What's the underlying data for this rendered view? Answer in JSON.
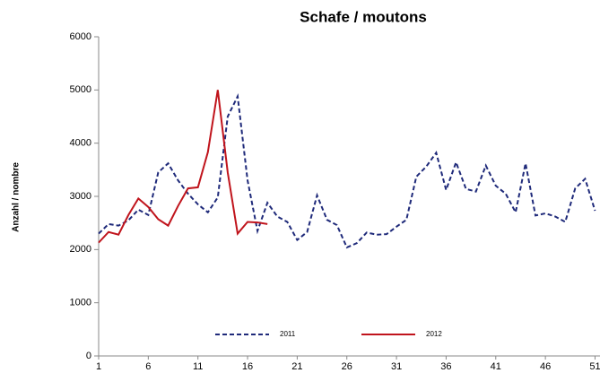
{
  "chart_data": {
    "type": "line",
    "title": "Schafe / moutons",
    "ylabel": "Anzahl / nombre",
    "xlim": [
      1,
      51.5
    ],
    "xticks": [
      1,
      6,
      11,
      16,
      21,
      26,
      31,
      36,
      41,
      46,
      51
    ],
    "ylim": [
      0,
      6000
    ],
    "yticks": [
      0,
      1000,
      2000,
      3000,
      4000,
      5000,
      6000
    ],
    "legend": "lower center",
    "series": [
      {
        "name": "2011",
        "color": "#1f2a7a",
        "dashed": true,
        "x": [
          1,
          2,
          3,
          4,
          5,
          6,
          7,
          8,
          9,
          10,
          11,
          12,
          13,
          14,
          15,
          16,
          17,
          18,
          19,
          20,
          21,
          22,
          23,
          24,
          25,
          26,
          27,
          28,
          29,
          30,
          31,
          32,
          33,
          34,
          35,
          36,
          37,
          38,
          39,
          40,
          41,
          42,
          43,
          44,
          45,
          46,
          47,
          48,
          49,
          50,
          51
        ],
        "values": [
          2300,
          2480,
          2450,
          2550,
          2750,
          2650,
          3450,
          3620,
          3300,
          3050,
          2850,
          2700,
          2980,
          4500,
          4880,
          3300,
          2350,
          2880,
          2620,
          2520,
          2180,
          2330,
          3020,
          2560,
          2460,
          2040,
          2120,
          2320,
          2280,
          2290,
          2430,
          2560,
          3370,
          3560,
          3820,
          3120,
          3640,
          3140,
          3090,
          3580,
          3200,
          3050,
          2700,
          3620,
          2640,
          2680,
          2620,
          2520,
          3150,
          3330,
          2730
        ]
      },
      {
        "name": "2012",
        "color": "#c0141c",
        "dashed": false,
        "x": [
          1,
          2,
          3,
          4,
          5,
          6,
          7,
          8,
          9,
          10,
          11,
          12,
          13,
          14,
          15,
          16,
          17,
          18
        ],
        "values": [
          2130,
          2330,
          2280,
          2650,
          2960,
          2800,
          2570,
          2450,
          2820,
          3150,
          3170,
          3830,
          5000,
          3450,
          2300,
          2520,
          2510,
          2480
        ]
      }
    ]
  }
}
